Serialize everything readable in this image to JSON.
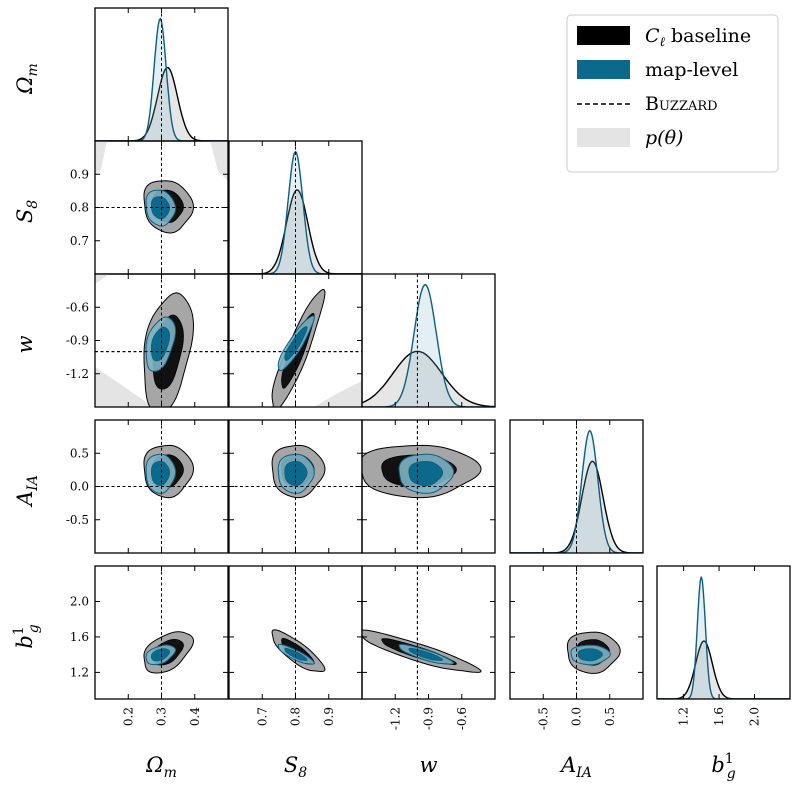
{
  "chart_data": {
    "type": "corner",
    "parameters": [
      {
        "key": "om",
        "label": "Ω_m",
        "symbol": "Ω",
        "sub": "m",
        "sup": "",
        "range": [
          0.1,
          0.5
        ],
        "ticks": [
          0.2,
          0.3,
          0.4
        ],
        "tick_labels": [
          "0.2",
          "0.3",
          "0.4"
        ],
        "truth": 0.3
      },
      {
        "key": "s8",
        "label": "S_8",
        "symbol": "S",
        "sub": "8",
        "sup": "",
        "range": [
          0.6,
          1.0
        ],
        "ticks": [
          0.7,
          0.8,
          0.9
        ],
        "tick_labels": [
          "0.7",
          "0.8",
          "0.9"
        ],
        "truth": 0.8
      },
      {
        "key": "w",
        "label": "w",
        "symbol": "w",
        "sub": "",
        "sup": "",
        "range": [
          -1.5,
          -0.3
        ],
        "ticks": [
          -1.2,
          -0.9,
          -0.6
        ],
        "tick_labels": [
          "-1.2",
          "-0.9",
          "-0.6"
        ],
        "truth": -1.0
      },
      {
        "key": "aia",
        "label": "A_IA",
        "symbol": "A",
        "sub": "IA",
        "sup": "",
        "range": [
          -1.0,
          1.0
        ],
        "ticks": [
          -0.5,
          0.0,
          0.5
        ],
        "tick_labels": [
          "-0.5",
          "0.0",
          "0.5"
        ],
        "truth": 0.0
      },
      {
        "key": "bg",
        "label": "b_g^1",
        "symbol": "b",
        "sub": "g",
        "sup": "1",
        "range": [
          0.9,
          2.4
        ],
        "ticks": [
          1.2,
          1.6,
          2.0
        ],
        "tick_labels": [
          "1.2",
          "1.6",
          "2.0"
        ],
        "truth": null
      }
    ],
    "series": [
      {
        "name": "Cℓ baseline",
        "legend_label": "C_ℓ baseline",
        "style": "filled contours 68%/95%",
        "colors": {
          "inner": "#111111",
          "outer": "#a6a6a6",
          "line": "#000000"
        },
        "mean": [
          0.318,
          0.805,
          -1.0,
          0.24,
          1.43
        ],
        "sigma": [
          0.03,
          0.032,
          0.22,
          0.16,
          0.095
        ],
        "corr": {
          "om-s8": -0.1,
          "om-w": 0.35,
          "s8-w": 0.9,
          "om-aia": 0.0,
          "s8-aia": 0.0,
          "w-aia": 0.0,
          "om-bg": 0.45,
          "s8-bg": -0.82,
          "w-bg": -0.9,
          "aia-bg": 0.0
        }
      },
      {
        "name": "map-level",
        "legend_label": "map-level",
        "style": "filled contours 68%/95%",
        "colors": {
          "inner": "#0b6a8c",
          "outer": "#7fb4c7",
          "line": "#0b5f80"
        },
        "mean": [
          0.296,
          0.8,
          -0.93,
          0.2,
          1.4
        ],
        "sigma": [
          0.018,
          0.022,
          0.1,
          0.12,
          0.045
        ],
        "corr": {
          "om-s8": -0.1,
          "om-w": 0.4,
          "s8-w": 0.9,
          "om-aia": 0.0,
          "s8-aia": 0.0,
          "w-aia": 0.0,
          "om-bg": 0.4,
          "s8-bg": -0.85,
          "w-bg": -0.85,
          "aia-bg": 0.0
        }
      }
    ],
    "truth_line": {
      "name": "Buzzard",
      "style": "dashed",
      "color": "#000000"
    },
    "prior": {
      "name": "p(θ)",
      "color": "#e4e4e4"
    },
    "legend": {
      "position": "top-right",
      "entries": [
        {
          "label_main": "C",
          "label_sub": "ℓ",
          "label_rest": " baseline",
          "swatch": "#000000"
        },
        {
          "label_main": "map-level",
          "label_sub": "",
          "label_rest": "",
          "swatch": "#0b6a8c"
        },
        {
          "label_main": "Buzzard",
          "label_sub": "",
          "label_rest": "",
          "swatch": "dashed"
        },
        {
          "label_main": "p(θ)",
          "label_sub": "",
          "label_rest": "",
          "swatch": "#e4e4e4"
        }
      ]
    }
  }
}
